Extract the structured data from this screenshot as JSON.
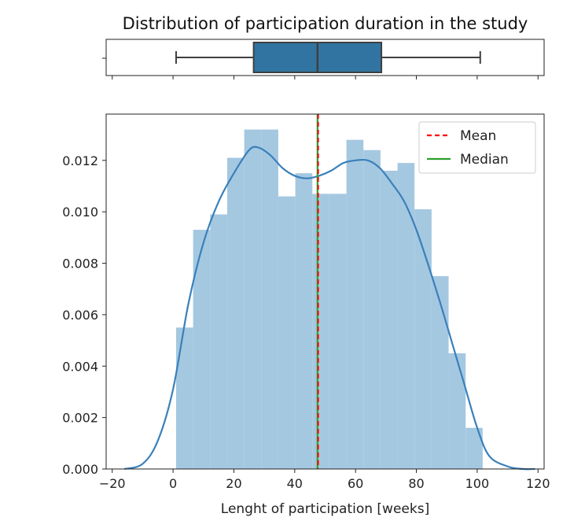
{
  "chart_data": [
    {
      "type": "box",
      "title": "Distribution of participation duration in the study",
      "xlim": [
        -22,
        122
      ],
      "whisker_low": 1,
      "q1": 26.5,
      "median": 47.5,
      "q3": 68.5,
      "whisker_high": 101,
      "color": "#3274a1"
    },
    {
      "type": "histogram",
      "xlabel": "Lenght of participation [weeks]",
      "ylabel": "",
      "xlim": [
        -22,
        122
      ],
      "ylim": [
        0,
        0.0138
      ],
      "xticks": [
        -20,
        0,
        20,
        40,
        60,
        80,
        100,
        120
      ],
      "xtick_labels": [
        "−20",
        "0",
        "20",
        "40",
        "60",
        "80",
        "100",
        "120"
      ],
      "yticks": [
        0,
        0.002,
        0.004,
        0.006,
        0.008,
        0.01,
        0.012
      ],
      "ytick_labels": [
        "0.000",
        "0.002",
        "0.004",
        "0.006",
        "0.008",
        "0.010",
        "0.012"
      ],
      "bins": [
        {
          "x0": 1.0,
          "x1": 6.6,
          "density": 0.0055
        },
        {
          "x0": 6.6,
          "x1": 12.2,
          "density": 0.0093
        },
        {
          "x0": 12.2,
          "x1": 17.8,
          "density": 0.0099
        },
        {
          "x0": 17.8,
          "x1": 23.4,
          "density": 0.0121
        },
        {
          "x0": 23.4,
          "x1": 29.0,
          "density": 0.0132
        },
        {
          "x0": 29.0,
          "x1": 34.6,
          "density": 0.0132
        },
        {
          "x0": 34.6,
          "x1": 40.2,
          "density": 0.0106
        },
        {
          "x0": 40.2,
          "x1": 45.8,
          "density": 0.0115
        },
        {
          "x0": 45.8,
          "x1": 51.4,
          "density": 0.0107
        },
        {
          "x0": 51.4,
          "x1": 57.0,
          "density": 0.0107
        },
        {
          "x0": 57.0,
          "x1": 62.6,
          "density": 0.0128
        },
        {
          "x0": 62.6,
          "x1": 68.2,
          "density": 0.0124
        },
        {
          "x0": 68.2,
          "x1": 73.8,
          "density": 0.0116
        },
        {
          "x0": 73.8,
          "x1": 79.4,
          "density": 0.0119
        },
        {
          "x0": 79.4,
          "x1": 85.0,
          "density": 0.0101
        },
        {
          "x0": 85.0,
          "x1": 90.6,
          "density": 0.0075
        },
        {
          "x0": 90.6,
          "x1": 96.2,
          "density": 0.0045
        },
        {
          "x0": 96.2,
          "x1": 101.8,
          "density": 0.0016
        }
      ],
      "kde": {
        "x": [
          -16,
          -10,
          -5,
          0,
          5,
          10,
          15,
          20,
          25,
          28,
          32,
          36,
          40,
          44,
          48,
          52,
          56,
          60,
          64,
          68,
          72,
          76,
          80,
          84,
          88,
          92,
          96,
          100,
          104,
          110,
          115,
          119
        ],
        "y": [
          0.0,
          0.0002,
          0.0011,
          0.0031,
          0.0064,
          0.0088,
          0.0104,
          0.0115,
          0.0124,
          0.0125,
          0.0122,
          0.0117,
          0.0114,
          0.0113,
          0.0114,
          0.0116,
          0.0119,
          0.012,
          0.012,
          0.0117,
          0.0111,
          0.0104,
          0.0093,
          0.0079,
          0.0064,
          0.0048,
          0.0032,
          0.0016,
          0.0005,
          0.0001,
          0.0,
          0.0
        ]
      },
      "mean": 47.7,
      "median": 47.5,
      "legend": {
        "placement": "top-right",
        "entries": [
          {
            "label": "Mean",
            "color": "#ff0000",
            "style": "dashed"
          },
          {
            "label": "Median",
            "color": "#2ca02c",
            "style": "solid"
          }
        ]
      },
      "colors": {
        "bars": "#a5c8e1",
        "kde": "#3a80ba"
      }
    }
  ]
}
